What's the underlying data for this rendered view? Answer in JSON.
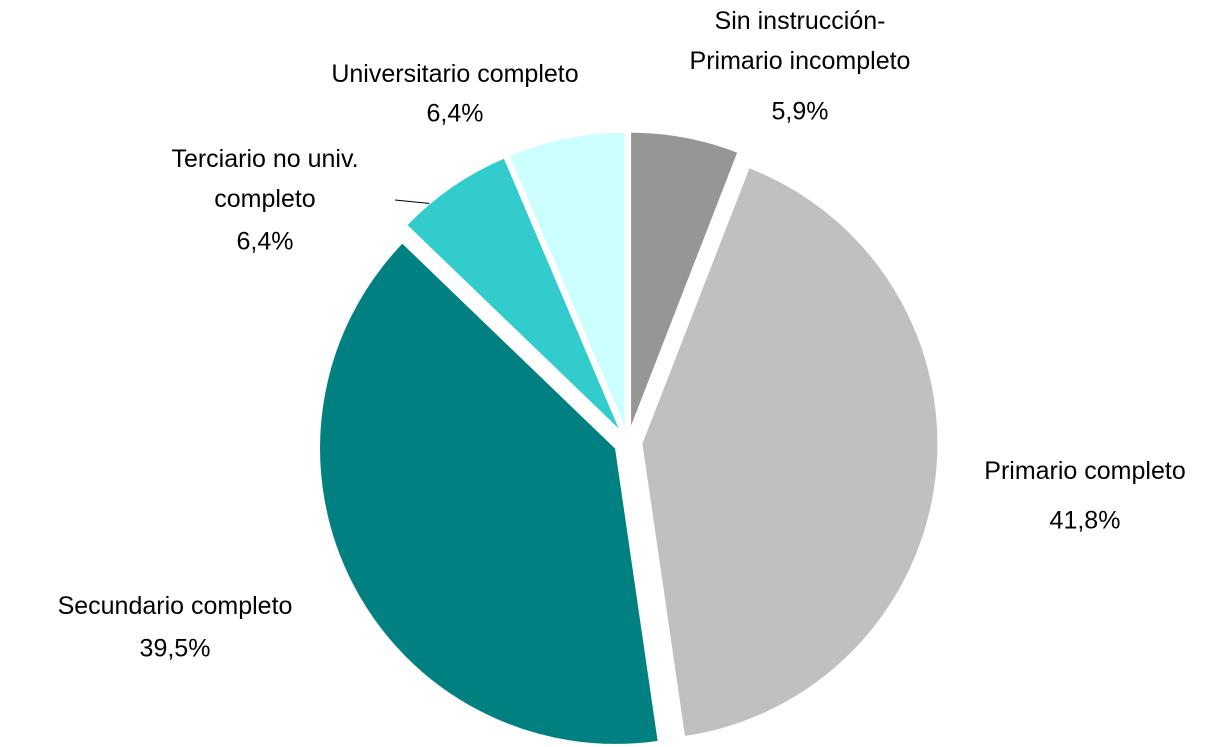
{
  "chart_data": {
    "type": "pie",
    "categories": [
      "Sin instrucción-\nPrimario incompleto",
      "Primario completo",
      "Secundario completo",
      "Terciario no univ.\ncompleto",
      "Universitario completo"
    ],
    "values": [
      5.9,
      41.8,
      39.5,
      6.4,
      6.4
    ],
    "value_labels": [
      "5,9%",
      "41,8%",
      "39,5%",
      "6,4%",
      "6,4%"
    ],
    "colors": [
      "#969696",
      "#c0c0c0",
      "#008080",
      "#33cccc",
      "#ccffff"
    ]
  }
}
